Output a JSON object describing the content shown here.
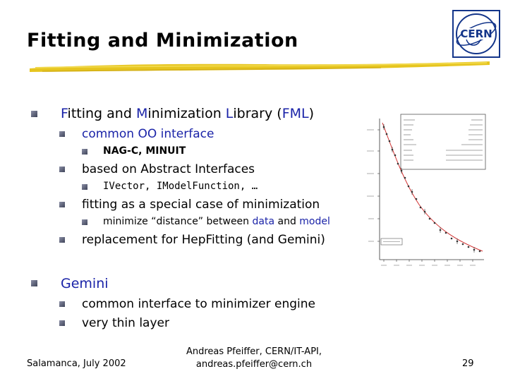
{
  "slide": {
    "title": "Fitting and Minimization",
    "page_number": "29"
  },
  "bullets": {
    "fml": {
      "letters": [
        "F",
        "M",
        "L",
        "FML"
      ],
      "text": {
        "f_rest": "itting and ",
        "m_rest": "inimization ",
        "l_rest": "ibrary (",
        "close": ")"
      }
    },
    "common_oo": "common OO interface",
    "nag": "NAG-C, MINUIT",
    "abstract": "based on Abstract Interfaces",
    "ivector": "IVector, IModelFunction, …",
    "fitting_special": "fitting as a special case of minimization",
    "minimize": {
      "prefix": "minimize “distance” between ",
      "data": "data",
      "and": " and ",
      "model": "model"
    },
    "replacement": "replacement for HepFitting (and Gemini)",
    "gemini": "Gemini",
    "common_minimizer": "common interface to minimizer engine",
    "thin_layer": "very thin layer"
  },
  "footer": {
    "left": "Salamanca, July 2002",
    "center_line1": "Andreas Pfeiffer, CERN/IT-API,",
    "center_line2": "andreas.pfeiffer@cern.ch"
  },
  "logo": {
    "text": "CERN"
  },
  "colors": {
    "title_stroke": "#e3c21c",
    "accent_blue": "#1a23a8",
    "bullet": "#4a4f66"
  }
}
